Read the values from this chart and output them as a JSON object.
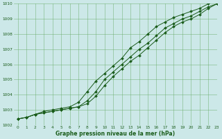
{
  "xlabel": "Graphe pression niveau de la mer (hPa)",
  "xlim": [
    -0.5,
    23
  ],
  "ylim": [
    1002,
    1010
  ],
  "yticks": [
    1002,
    1003,
    1004,
    1005,
    1006,
    1007,
    1008,
    1009,
    1010
  ],
  "xticks": [
    0,
    1,
    2,
    3,
    4,
    5,
    6,
    7,
    8,
    9,
    10,
    11,
    12,
    13,
    14,
    15,
    16,
    17,
    18,
    19,
    20,
    21,
    22,
    23
  ],
  "background_color": "#cce8e8",
  "grid_color": "#66aa66",
  "line_color": "#1a5c1a",
  "marker_color": "#1a5c1a",
  "series": {
    "main": [
      1002.4,
      1002.5,
      1002.7,
      1002.8,
      1002.9,
      1003.0,
      1003.1,
      1003.2,
      1003.6,
      1004.2,
      1005.0,
      1005.5,
      1006.0,
      1006.5,
      1007.0,
      1007.4,
      1007.9,
      1008.4,
      1008.7,
      1009.0,
      1009.2,
      1009.5,
      1009.8,
      1010.0
    ],
    "upper": [
      1002.4,
      1002.5,
      1002.7,
      1002.9,
      1003.0,
      1003.1,
      1003.2,
      1003.5,
      1004.2,
      1004.9,
      1005.4,
      1005.9,
      1006.4,
      1007.1,
      1007.5,
      1008.0,
      1008.5,
      1008.8,
      1009.1,
      1009.3,
      1009.5,
      1009.7,
      1010.0,
      1010.5
    ],
    "lower": [
      1002.4,
      1002.5,
      1002.7,
      1002.8,
      1002.9,
      1003.0,
      1003.1,
      1003.2,
      1003.4,
      1003.9,
      1004.6,
      1005.2,
      1005.7,
      1006.2,
      1006.6,
      1007.1,
      1007.6,
      1008.1,
      1008.5,
      1008.8,
      1009.0,
      1009.3,
      1009.7,
      1010.0
    ]
  }
}
